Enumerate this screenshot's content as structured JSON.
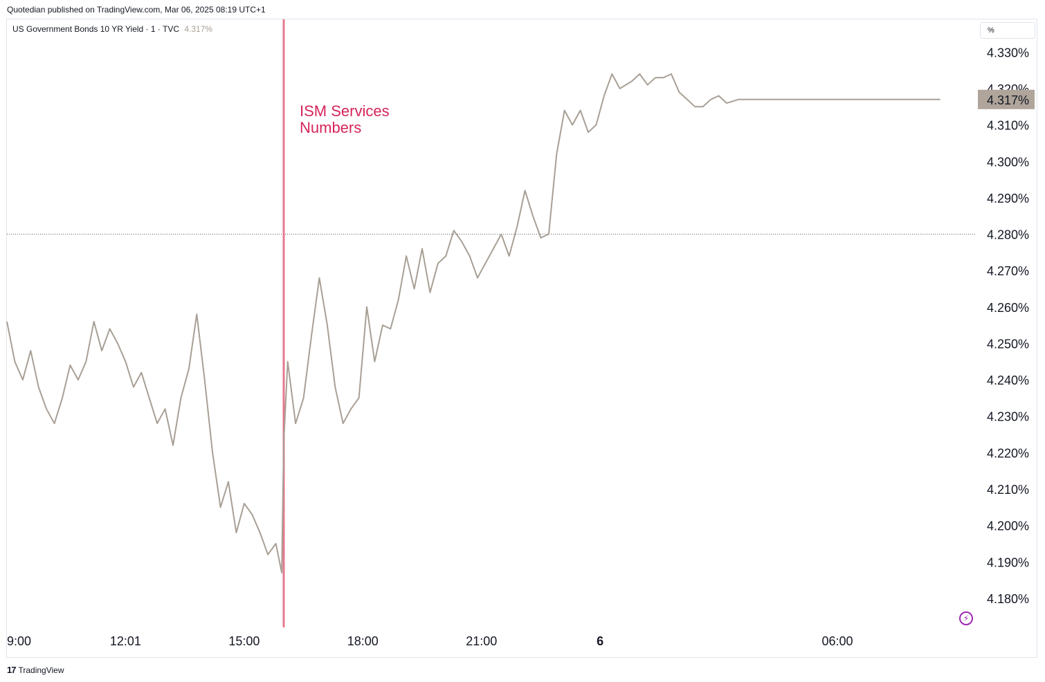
{
  "header": {
    "published": "Quotedian published on TradingView.com, Mar 06, 2025 08:19 UTC+1",
    "symbol": "US Government Bonds 10 YR Yield · 1 · TVC",
    "last_value": "4.317%",
    "unit_selector": "%"
  },
  "footer": {
    "logo": "17",
    "brand": "TradingView"
  },
  "annotation": {
    "line1": "ISM Services",
    "line2": "Numbers"
  },
  "colors": {
    "line": "#a89f95",
    "annotation": "#d6245a",
    "marker": "#e5788f",
    "price_tag": "#b0a59b"
  },
  "chart_data": {
    "type": "line",
    "title": "US Government Bonds 10 YR Yield",
    "y_unit": "%",
    "ylim": [
      4.172,
      4.339
    ],
    "y_ticks": [
      "4.330%",
      "4.320%",
      "4.310%",
      "4.300%",
      "4.290%",
      "4.280%",
      "4.270%",
      "4.260%",
      "4.250%",
      "4.240%",
      "4.230%",
      "4.220%",
      "4.210%",
      "4.200%",
      "4.190%",
      "4.180%"
    ],
    "y_tick_values": [
      4.33,
      4.32,
      4.31,
      4.3,
      4.29,
      4.28,
      4.27,
      4.26,
      4.25,
      4.24,
      4.23,
      4.22,
      4.21,
      4.2,
      4.19,
      4.18
    ],
    "x_ticks": [
      "9:00",
      "12:01",
      "15:00",
      "18:00",
      "21:00",
      "6",
      "06:00"
    ],
    "x_tick_hours": [
      9.0,
      12.0,
      15.0,
      18.0,
      21.0,
      24.0,
      30.0
    ],
    "xlim_hours": [
      9.0,
      33.5
    ],
    "reference_line": {
      "value": 4.28,
      "style": "dotted"
    },
    "event_marker_hour": 16.0,
    "last_price": 4.317,
    "series": [
      {
        "x_hours": [
          9.0,
          9.2,
          9.4,
          9.6,
          9.8,
          10.0,
          10.2,
          10.4,
          10.6,
          10.8,
          11.0,
          11.2,
          11.4,
          11.6,
          11.8,
          12.0,
          12.2,
          12.4,
          12.6,
          12.8,
          13.0,
          13.2,
          13.4,
          13.6,
          13.8,
          14.0,
          14.2,
          14.4,
          14.6,
          14.8,
          15.0,
          15.2,
          15.4,
          15.6,
          15.8,
          15.95,
          16.0,
          16.1,
          16.3,
          16.5,
          16.7,
          16.9,
          17.1,
          17.3,
          17.5,
          17.7,
          17.9,
          18.1,
          18.3,
          18.5,
          18.7,
          18.9,
          19.1,
          19.3,
          19.5,
          19.7,
          19.9,
          20.1,
          20.3,
          20.5,
          20.7,
          20.9,
          21.1,
          21.3,
          21.5,
          21.7,
          21.9,
          22.1,
          22.3,
          22.5,
          22.7,
          22.9,
          23.1,
          23.3,
          23.5,
          23.7,
          23.9,
          24.1,
          24.3,
          24.5,
          24.8,
          25.0,
          25.2,
          25.4,
          25.6,
          25.8,
          26.0,
          26.2,
          26.4,
          26.6,
          26.8,
          27.0,
          27.2,
          27.5,
          28.0,
          28.5,
          29.0,
          29.5,
          30.0,
          30.5,
          30.8,
          31.0,
          31.2,
          31.5,
          31.8,
          32.0,
          32.2,
          32.4,
          32.6
        ],
        "y_values": [
          4.256,
          4.245,
          4.24,
          4.248,
          4.238,
          4.232,
          4.228,
          4.235,
          4.244,
          4.24,
          4.245,
          4.256,
          4.248,
          4.254,
          4.25,
          4.245,
          4.238,
          4.242,
          4.235,
          4.228,
          4.232,
          4.222,
          4.235,
          4.243,
          4.258,
          4.24,
          4.22,
          4.205,
          4.212,
          4.198,
          4.206,
          4.203,
          4.198,
          4.192,
          4.195,
          4.187,
          4.223,
          4.245,
          4.228,
          4.235,
          4.252,
          4.268,
          4.255,
          4.238,
          4.228,
          4.232,
          4.235,
          4.26,
          4.245,
          4.255,
          4.254,
          4.262,
          4.274,
          4.265,
          4.276,
          4.264,
          4.272,
          4.274,
          4.281,
          4.278,
          4.274,
          4.268,
          4.272,
          4.276,
          4.28,
          4.274,
          4.282,
          4.292,
          4.285,
          4.279,
          4.28,
          4.302,
          4.314,
          4.31,
          4.314,
          4.308,
          4.31,
          4.318,
          4.324,
          4.32,
          4.322,
          4.324,
          4.321,
          4.323,
          4.323,
          4.324,
          4.319,
          4.317,
          4.315,
          4.315,
          4.317,
          4.318,
          4.316,
          4.317,
          4.317,
          4.317,
          4.317,
          4.317,
          4.317,
          4.317,
          4.317,
          4.317,
          4.317,
          4.317,
          4.317,
          4.317,
          4.317,
          4.317,
          4.317
        ]
      }
    ]
  }
}
